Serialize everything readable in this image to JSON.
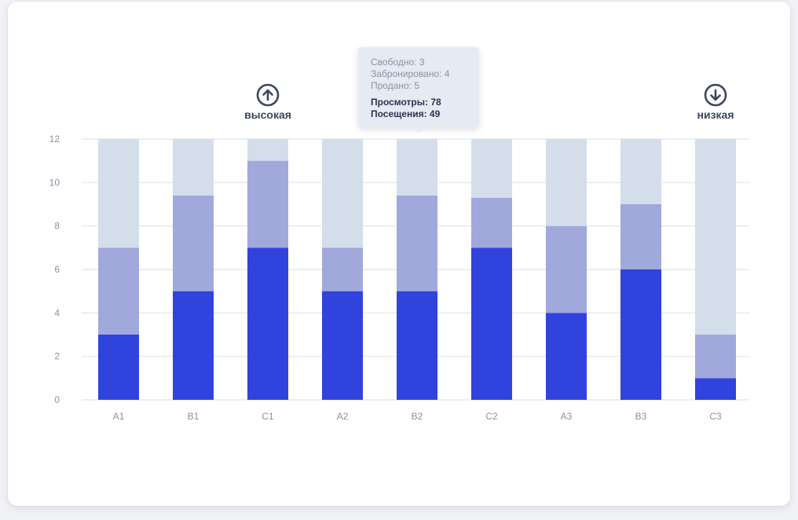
{
  "colors": {
    "free": "#d4ddea",
    "booked": "#a1a8dc",
    "sold": "#3043dd",
    "grid": "#e6e9ef",
    "icon": "#3a4660"
  },
  "chart_data": {
    "type": "bar",
    "stacked": true,
    "categories": [
      "A1",
      "B1",
      "C1",
      "A2",
      "B2",
      "C2",
      "A3",
      "B3",
      "C3"
    ],
    "series": [
      {
        "name": "Продано",
        "values": [
          3,
          5,
          7,
          5,
          5,
          7,
          4,
          6,
          1
        ]
      },
      {
        "name": "Забронировано",
        "values": [
          4,
          4.4,
          4,
          2,
          4.4,
          2.3,
          4,
          3,
          2
        ]
      },
      {
        "name": "Свободно",
        "values": [
          5,
          2.6,
          1,
          5,
          2.6,
          2.7,
          4,
          3,
          9
        ]
      }
    ],
    "y_ticks": [
      0,
      2,
      4,
      6,
      8,
      10,
      12
    ],
    "ylim": [
      0,
      12
    ],
    "grid": true,
    "markers": {
      "high": {
        "label": "высокая",
        "icon": "arrow-up-circle-icon",
        "category": "C1"
      },
      "low": {
        "label": "низкая",
        "icon": "arrow-down-circle-icon",
        "category": "C3"
      }
    },
    "tooltip": {
      "category": "B2",
      "free": "Свободно: 3",
      "booked": "Забронировано: 4",
      "sold": "Продано: 5",
      "views": "Просмотры: 78",
      "visits": "Посещения: 49"
    }
  }
}
